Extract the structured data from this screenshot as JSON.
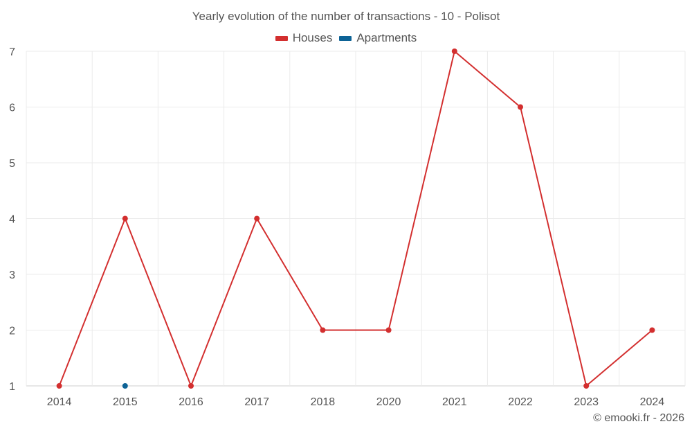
{
  "chart_data": {
    "type": "line",
    "title": "Yearly evolution of the number of transactions - 10 - Polisot",
    "categories": [
      "2014",
      "2015",
      "2016",
      "2017",
      "2018",
      "2020",
      "2021",
      "2022",
      "2023",
      "2024"
    ],
    "series": [
      {
        "name": "Houses",
        "color": "#d32f2f",
        "values": [
          1,
          4,
          1,
          4,
          2,
          2,
          7,
          6,
          1,
          2
        ]
      },
      {
        "name": "Apartments",
        "color": "#0d6396",
        "values": [
          null,
          1,
          null,
          null,
          null,
          null,
          null,
          null,
          null,
          null
        ]
      }
    ],
    "yticks": [
      1,
      2,
      3,
      4,
      5,
      6,
      7
    ],
    "ylim": [
      1,
      7
    ],
    "xlabel": "",
    "ylabel": "",
    "grid": true,
    "legend_position": "top-center"
  },
  "footer": {
    "credit": "© emooki.fr - 2026"
  }
}
